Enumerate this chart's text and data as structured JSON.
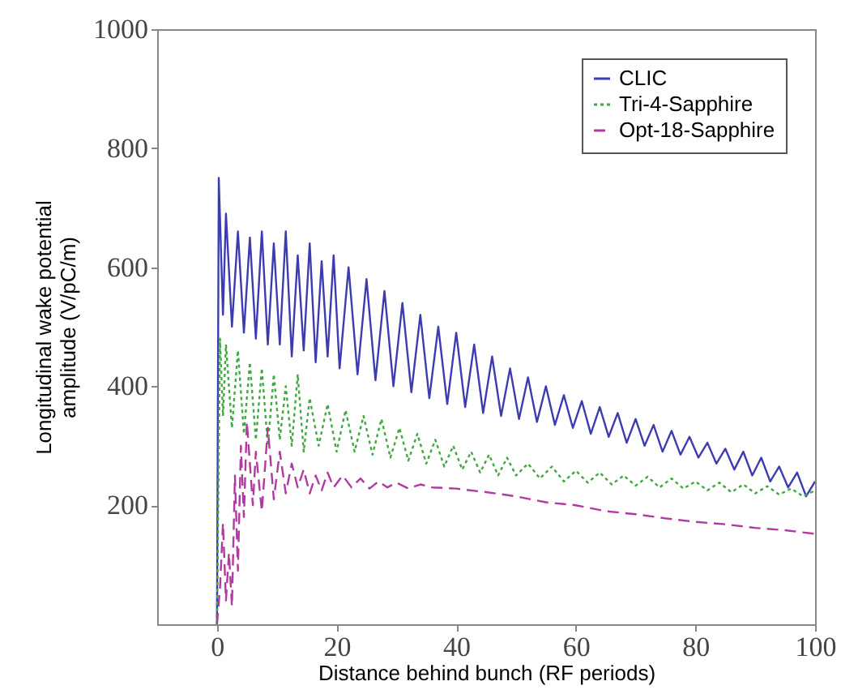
{
  "chart_data": {
    "type": "line",
    "xlabel": "Distance behind bunch (RF periods)",
    "ylabel": "Longitudinal wake potential\namplitude (V/pC/m)",
    "xlim": [
      -10,
      100
    ],
    "xticks": [
      0,
      20,
      40,
      60,
      80,
      100
    ],
    "ylim": [
      0,
      1000
    ],
    "yticks": [
      200,
      400,
      600,
      800,
      1000
    ],
    "grid": false,
    "legend": "top right",
    "marker": "none",
    "series": [
      {
        "name": "CLIC",
        "color": "#3c3cb0",
        "line_style": "solid",
        "x": [
          0,
          0.3,
          1,
          1.5,
          2.5,
          3.5,
          4.5,
          5.5,
          6.5,
          7.5,
          8.5,
          9.5,
          10.5,
          11.5,
          12.5,
          13.5,
          14.5,
          15.5,
          16.5,
          17.5,
          18.5,
          19.5,
          20.5,
          22,
          23.5,
          25,
          26.5,
          28,
          29.5,
          31,
          32.5,
          34,
          35.5,
          37,
          38.5,
          40,
          41.5,
          43,
          44.5,
          46,
          47.5,
          49,
          50.5,
          52,
          53.5,
          55,
          56.5,
          58,
          59.5,
          61,
          62.5,
          64,
          65.5,
          67,
          68.5,
          70,
          71.5,
          73,
          74.5,
          76,
          77.5,
          79,
          80.5,
          82,
          83.5,
          85,
          86.5,
          88,
          89.5,
          91,
          92.5,
          94,
          95.5,
          97,
          98.5,
          100
        ],
        "values": [
          0,
          750,
          520,
          690,
          500,
          660,
          490,
          650,
          480,
          660,
          470,
          640,
          470,
          660,
          450,
          620,
          460,
          640,
          440,
          610,
          450,
          620,
          430,
          600,
          420,
          580,
          410,
          560,
          400,
          540,
          390,
          520,
          380,
          500,
          370,
          490,
          365,
          470,
          355,
          450,
          350,
          430,
          345,
          415,
          340,
          400,
          335,
          385,
          330,
          375,
          320,
          365,
          315,
          355,
          305,
          345,
          300,
          335,
          290,
          325,
          285,
          315,
          280,
          305,
          270,
          295,
          260,
          290,
          250,
          280,
          240,
          265,
          230,
          255,
          215,
          240
        ]
      },
      {
        "name": "Tri-4-Sapphire",
        "color": "#40a840",
        "line_style": "dotted",
        "x": [
          0,
          0.5,
          1,
          1.5,
          2.5,
          3.5,
          4.5,
          5.5,
          6.5,
          7.5,
          8.5,
          9.5,
          10.5,
          11.5,
          12.5,
          13.5,
          14.5,
          15.5,
          17,
          18.5,
          20,
          21.5,
          23,
          24.5,
          26,
          27.5,
          29,
          30.5,
          32,
          33.5,
          35,
          36.5,
          38,
          39.5,
          41,
          42.5,
          44,
          45.5,
          47,
          48.5,
          50,
          52,
          54,
          56,
          58,
          60,
          62,
          64,
          66,
          68,
          70,
          72,
          74,
          76,
          78,
          80,
          82,
          84,
          86,
          88,
          90,
          92,
          94,
          96,
          98,
          100
        ],
        "values": [
          0,
          480,
          350,
          470,
          330,
          460,
          320,
          440,
          310,
          430,
          300,
          420,
          310,
          400,
          300,
          420,
          290,
          380,
          300,
          370,
          290,
          360,
          290,
          350,
          285,
          345,
          280,
          330,
          275,
          320,
          270,
          310,
          265,
          300,
          260,
          290,
          255,
          285,
          250,
          280,
          250,
          270,
          245,
          265,
          240,
          258,
          238,
          255,
          235,
          250,
          233,
          248,
          230,
          245,
          228,
          240,
          225,
          238,
          222,
          235,
          220,
          232,
          218,
          228,
          215,
          225
        ]
      },
      {
        "name": "Opt-18-Sapphire",
        "color": "#b03aa0",
        "line_style": "dashed",
        "x": [
          0,
          0.5,
          1,
          1.5,
          2,
          2.5,
          3,
          3.5,
          4,
          4.5,
          5,
          6,
          6.5,
          7.5,
          8.5,
          9.5,
          10.5,
          11.5,
          12.5,
          13.5,
          14.5,
          15.5,
          16.5,
          17.5,
          18.5,
          19.5,
          21,
          22.5,
          24,
          25.5,
          27,
          28.5,
          30,
          32,
          34,
          36,
          40,
          45,
          50,
          55,
          60,
          65,
          70,
          75,
          80,
          85,
          90,
          95,
          100
        ],
        "values": [
          0,
          60,
          170,
          40,
          120,
          30,
          250,
          90,
          300,
          180,
          340,
          200,
          290,
          190,
          330,
          210,
          290,
          220,
          270,
          230,
          260,
          220,
          250,
          225,
          255,
          230,
          250,
          230,
          245,
          228,
          240,
          230,
          238,
          228,
          235,
          230,
          228,
          222,
          215,
          205,
          200,
          190,
          185,
          178,
          172,
          168,
          162,
          158,
          152
        ]
      }
    ]
  }
}
